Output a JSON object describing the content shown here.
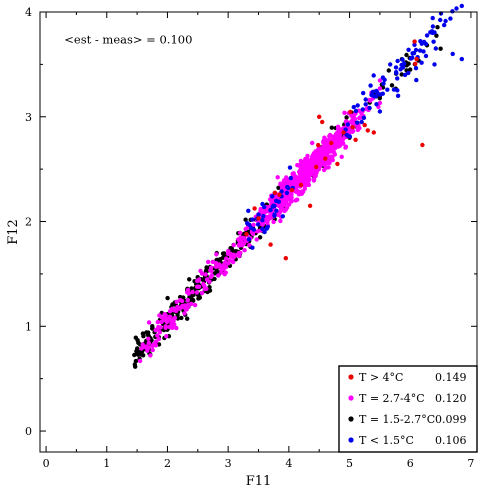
{
  "chart_data": {
    "type": "scatter",
    "xlabel": "F11",
    "ylabel": "F12",
    "xlim": [
      -0.1,
      7.1
    ],
    "ylim": [
      -0.2,
      4.0
    ],
    "xticks": [
      "0",
      "1",
      "2",
      "3",
      "4",
      "5",
      "6",
      "7"
    ],
    "yticks": [
      "0",
      "1",
      "2",
      "3",
      "4"
    ],
    "grid": false,
    "annotation": "<est - meas> = 0.100",
    "legend_position": "bottom-right",
    "series": [
      {
        "name": "T > 4°C",
        "value_label": "0.149",
        "color": "#ee0000",
        "count": 28,
        "x_range": [
          3.3,
          6.2
        ],
        "points": [
          [
            4.5,
            3.0
          ],
          [
            4.55,
            2.95
          ],
          [
            5.05,
            2.9
          ],
          [
            4.9,
            2.85
          ],
          [
            5.3,
            2.87
          ],
          [
            5.25,
            2.92
          ],
          [
            4.2,
            2.35
          ],
          [
            4.35,
            2.15
          ],
          [
            5.4,
            2.85
          ],
          [
            6.2,
            2.73
          ],
          [
            3.7,
            1.78
          ],
          [
            3.95,
            1.65
          ],
          [
            3.5,
            2.03
          ],
          [
            4.6,
            2.6
          ],
          [
            4.7,
            2.75
          ],
          [
            5.1,
            2.78
          ],
          [
            4.8,
            2.55
          ],
          [
            3.3,
            1.88
          ],
          [
            4.45,
            2.52
          ],
          [
            4.05,
            2.3
          ]
        ]
      },
      {
        "name": "T = 2.7-4°C",
        "value_label": "0.120",
        "color": "#ff00ff",
        "count": 900,
        "x_range": [
          1.55,
          5.6
        ],
        "points": [
          [
            1.55,
            0.67
          ],
          [
            2.1,
            1.05
          ],
          [
            3.0,
            1.6
          ],
          [
            3.55,
            2.05
          ],
          [
            3.9,
            2.2
          ],
          [
            4.1,
            2.3
          ],
          [
            4.3,
            2.4
          ],
          [
            4.5,
            2.55
          ],
          [
            4.7,
            2.7
          ],
          [
            5.0,
            2.85
          ]
        ]
      },
      {
        "name": "T = 1.5-2.7°C",
        "value_label": "0.099",
        "color": "#000000",
        "count": 330,
        "x_range": [
          1.45,
          6.55
        ],
        "points": [
          [
            1.5,
            0.75
          ],
          [
            1.8,
            0.9
          ],
          [
            2.1,
            1.05
          ],
          [
            2.4,
            1.25
          ],
          [
            2.7,
            1.45
          ],
          [
            3.0,
            1.6
          ],
          [
            3.3,
            1.8
          ],
          [
            5.0,
            2.8
          ],
          [
            5.7,
            3.3
          ],
          [
            6.0,
            3.45
          ],
          [
            6.5,
            3.65
          ]
        ]
      },
      {
        "name": "T < 1.5°C",
        "value_label": "0.106",
        "color": "#0000ee",
        "count": 130,
        "x_range": [
          3.3,
          6.9
        ],
        "points": [
          [
            3.4,
            1.75
          ],
          [
            3.6,
            1.9
          ],
          [
            3.9,
            2.05
          ],
          [
            5.2,
            2.95
          ],
          [
            5.5,
            3.05
          ],
          [
            5.8,
            3.2
          ],
          [
            6.1,
            3.35
          ],
          [
            6.4,
            3.5
          ],
          [
            6.7,
            3.6
          ],
          [
            6.85,
            3.55
          ]
        ]
      }
    ]
  }
}
